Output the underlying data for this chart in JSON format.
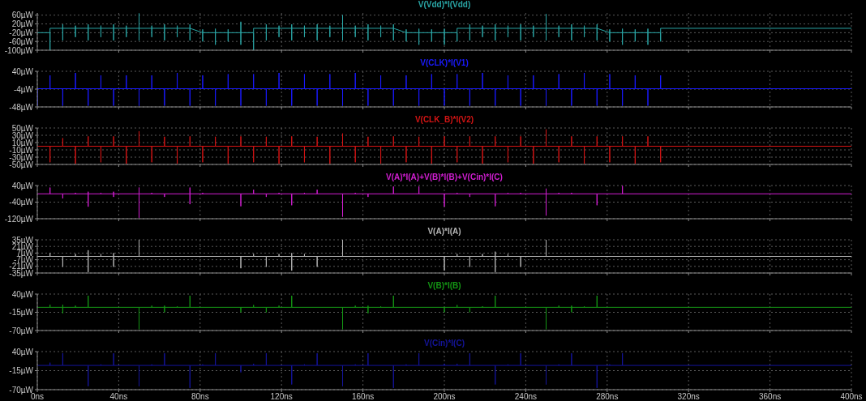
{
  "chart_data": [
    {
      "type": "line",
      "title": "V(Vdd)*I(Vdd)",
      "color": "#2aa7a7",
      "grid": true,
      "tick_labels": "y",
      "xlim": [
        0,
        400
      ],
      "xticks": [
        0,
        40,
        80,
        120,
        160,
        200,
        240,
        280,
        320,
        360,
        400
      ],
      "ylim": [
        -100,
        70
      ],
      "yticks": [
        {
          "value": 60,
          "label": "60µW"
        },
        {
          "value": 20,
          "label": "20µW"
        },
        {
          "value": -20,
          "label": "-20µW"
        },
        {
          "value": -60,
          "label": "-60µW"
        },
        {
          "value": -100,
          "label": "-100µW"
        }
      ],
      "x": [
        0,
        6.25,
        6.25,
        6.25,
        12.5,
        12.5,
        12.5,
        12.5,
        18.75,
        18.75,
        18.75,
        18.75,
        25,
        25,
        25,
        25,
        31.25,
        31.25,
        31.25,
        31.25,
        37.5,
        37.5,
        37.5,
        37.5,
        43.75,
        43.75,
        43.75,
        43.75,
        50,
        50,
        50,
        50,
        56.25,
        56.25,
        56.25,
        56.25,
        62.5,
        62.5,
        62.5,
        62.5,
        68.75,
        68.75,
        68.75,
        68.75,
        75,
        75,
        75,
        75,
        81.25,
        81.25,
        81.25,
        81.25,
        87.5,
        87.5,
        87.5,
        87.5,
        93.75,
        93.75,
        93.75,
        93.75,
        100,
        100,
        100,
        100,
        106.25,
        106.25,
        106.25,
        112.5,
        112.5,
        112.5,
        112.5,
        118.75,
        118.75,
        118.75,
        118.75,
        125,
        125,
        125,
        125,
        131.25,
        131.25,
        131.25,
        131.25,
        137.5,
        137.5,
        137.5,
        137.5,
        143.75,
        143.75,
        143.75,
        143.75,
        150,
        150,
        150,
        150,
        156.25,
        156.25,
        156.25,
        156.25,
        162.5,
        162.5,
        162.5,
        162.5,
        168.75,
        168.75,
        168.75,
        168.75,
        175,
        175,
        175,
        175,
        181.25,
        181.25,
        181.25,
        181.25,
        187.5,
        187.5,
        187.5,
        187.5,
        193.75,
        193.75,
        193.75,
        193.75,
        200,
        200,
        200,
        200,
        206.25,
        206.25,
        206.25,
        212.5,
        212.5,
        212.5,
        212.5,
        218.75,
        218.75,
        218.75,
        218.75,
        225,
        225,
        225,
        225,
        231.25,
        231.25,
        231.25,
        231.25,
        237.5,
        237.5,
        237.5,
        237.5,
        243.75,
        243.75,
        243.75,
        243.75,
        250,
        250,
        250,
        250,
        256.25,
        256.25,
        256.25,
        256.25,
        262.5,
        262.5,
        262.5,
        262.5,
        268.75,
        268.75,
        268.75,
        268.75,
        275,
        275,
        275,
        275,
        281.25,
        281.25,
        281.25,
        281.25,
        287.5,
        287.5,
        287.5,
        287.5,
        293.75,
        293.75,
        293.75,
        293.75,
        300,
        300,
        300,
        300,
        306.25,
        306.25,
        306.25,
        400
      ],
      "values": [
        -20,
        -20,
        -100,
        0,
        0,
        18,
        -55,
        0,
        0,
        12,
        -40,
        0,
        0,
        18,
        -55,
        0,
        0,
        12,
        -40,
        0,
        0,
        18,
        -55,
        0,
        0,
        12,
        -40,
        0,
        0,
        68,
        -55,
        0,
        0,
        12,
        -40,
        0,
        0,
        18,
        -55,
        0,
        0,
        12,
        -40,
        0,
        0,
        18,
        -55,
        0,
        -20,
        -5,
        -60,
        -20,
        -20,
        -2,
        -75,
        -20,
        -20,
        -5,
        -60,
        -20,
        -20,
        30,
        -75,
        -20,
        -20,
        -100,
        0,
        0,
        18,
        -55,
        0,
        0,
        12,
        -40,
        0,
        0,
        18,
        -55,
        0,
        0,
        12,
        -40,
        0,
        0,
        18,
        -55,
        0,
        0,
        12,
        -40,
        0,
        0,
        60,
        -55,
        0,
        0,
        12,
        -40,
        0,
        0,
        18,
        -55,
        0,
        0,
        12,
        -40,
        0,
        0,
        18,
        -55,
        0,
        -20,
        -5,
        -60,
        -20,
        -20,
        -2,
        -75,
        -20,
        -20,
        -5,
        -60,
        -20,
        -20,
        -2,
        -75,
        -20,
        -20,
        -60,
        0,
        0,
        18,
        -55,
        0,
        0,
        12,
        -40,
        0,
        0,
        18,
        -55,
        0,
        0,
        12,
        -40,
        0,
        0,
        18,
        -55,
        0,
        0,
        12,
        -40,
        0,
        0,
        65,
        -55,
        0,
        0,
        12,
        -40,
        0,
        0,
        18,
        -55,
        0,
        0,
        12,
        -40,
        0,
        0,
        18,
        -55,
        0,
        -20,
        -5,
        -60,
        -20,
        -20,
        -2,
        -75,
        -20,
        -20,
        -5,
        -60,
        -20,
        -20,
        -2,
        -75,
        -20,
        -20,
        -60,
        0,
        0
      ]
    },
    {
      "type": "line",
      "title": "V(CLK)*I(V1)",
      "color": "#1a1aff",
      "grid": true,
      "tick_labels": "y",
      "xlim": [
        0,
        400
      ],
      "xticks": [
        0,
        40,
        80,
        120,
        160,
        200,
        240,
        280,
        320,
        360,
        400
      ],
      "ylim": [
        -48,
        40
      ],
      "yticks": [
        {
          "value": 40,
          "label": "40µW"
        },
        {
          "value": -4,
          "label": "-4µW"
        },
        {
          "value": -48,
          "label": "-48µW"
        }
      ],
      "x": [
        0,
        0,
        0,
        6.25,
        6.25,
        6.25,
        12.5,
        12.5,
        12.5,
        18.75,
        18.75,
        18.75,
        25,
        25,
        25,
        31.25,
        31.25,
        31.25,
        37.5,
        37.5,
        37.5,
        43.75,
        43.75,
        43.75,
        50,
        50,
        50,
        56.25,
        56.25,
        56.25,
        62.5,
        62.5,
        62.5,
        68.75,
        68.75,
        68.75,
        75,
        75,
        75,
        81.25,
        81.25,
        81.25,
        87.5,
        87.5,
        87.5,
        93.75,
        93.75,
        93.75,
        100,
        100,
        100,
        106.25,
        106.25,
        106.25,
        112.5,
        112.5,
        112.5,
        118.75,
        118.75,
        118.75,
        125,
        125,
        125,
        131.25,
        131.25,
        131.25,
        137.5,
        137.5,
        137.5,
        143.75,
        143.75,
        143.75,
        150,
        150,
        150,
        156.25,
        156.25,
        156.25,
        162.5,
        162.5,
        162.5,
        168.75,
        168.75,
        168.75,
        175,
        175,
        175,
        181.25,
        181.25,
        181.25,
        187.5,
        187.5,
        187.5,
        193.75,
        193.75,
        193.75,
        200,
        200,
        200,
        206.25,
        206.25,
        206.25,
        212.5,
        212.5,
        212.5,
        218.75,
        218.75,
        218.75,
        225,
        225,
        225,
        231.25,
        231.25,
        231.25,
        237.5,
        237.5,
        237.5,
        243.75,
        243.75,
        243.75,
        250,
        250,
        250,
        256.25,
        256.25,
        256.25,
        262.5,
        262.5,
        262.5,
        268.75,
        268.75,
        268.75,
        275,
        275,
        275,
        281.25,
        281.25,
        281.25,
        287.5,
        287.5,
        287.5,
        293.75,
        293.75,
        293.75,
        300,
        300,
        300,
        306.25,
        306.25,
        306.25,
        400
      ],
      "values": [
        -3,
        -45,
        -3,
        -3,
        30,
        -3,
        -3,
        -45,
        -3,
        -3,
        36,
        -3,
        -3,
        -45,
        -3,
        -3,
        30,
        -3,
        -3,
        -45,
        -3,
        -3,
        30,
        -3,
        -3,
        -45,
        -3,
        -3,
        30,
        -3,
        -3,
        -45,
        -3,
        -3,
        36,
        -3,
        -3,
        -45,
        -3,
        -3,
        30,
        -3,
        -3,
        -45,
        -3,
        -3,
        33,
        -3,
        -3,
        -45,
        -3,
        -3,
        33,
        -3,
        -3,
        -45,
        -3,
        -3,
        36,
        -3,
        -3,
        -45,
        -3,
        -3,
        33,
        -3,
        -3,
        -45,
        -3,
        -3,
        33,
        -3,
        -3,
        -45,
        -3,
        -3,
        36,
        -3,
        -3,
        -45,
        -3,
        -3,
        30,
        -3,
        -3,
        -45,
        -3,
        -3,
        30,
        -3,
        -3,
        -45,
        -3,
        -3,
        33,
        -3,
        -3,
        -45,
        -3,
        -3,
        33,
        -3,
        -3,
        -45,
        -3,
        -3,
        36,
        -3,
        -3,
        -45,
        -3,
        -3,
        30,
        -3,
        -3,
        -45,
        -3,
        -3,
        30,
        -3,
        -3,
        -45,
        -3,
        -3,
        33,
        -3,
        -3,
        -45,
        -3,
        -3,
        36,
        -3,
        -3,
        -45,
        -3,
        -3,
        33,
        -3,
        -3,
        -45,
        -3,
        -3,
        30,
        -3,
        -3,
        -45,
        -3,
        -3,
        30,
        -3,
        -3
      ]
    },
    {
      "type": "line",
      "title": "V(CLK_B)*I(V2)",
      "color": "#d41414",
      "grid": true,
      "tick_labels": "y",
      "xlim": [
        0,
        400
      ],
      "xticks": [
        0,
        40,
        80,
        120,
        160,
        200,
        240,
        280,
        320,
        360,
        400
      ],
      "ylim": [
        -50,
        50
      ],
      "yticks": [
        {
          "value": 50,
          "label": "50µW"
        },
        {
          "value": 30,
          "label": "30µW"
        },
        {
          "value": 10,
          "label": "10µW"
        },
        {
          "value": -10,
          "label": "-10µW"
        },
        {
          "value": -30,
          "label": "-30µW"
        },
        {
          "value": -50,
          "label": "-50µW"
        }
      ],
      "x": [
        0,
        6.25,
        6.25,
        6.25,
        12.5,
        12.5,
        12.5,
        18.75,
        18.75,
        18.75,
        25,
        25,
        25,
        31.25,
        31.25,
        31.25,
        37.5,
        37.5,
        37.5,
        43.75,
        43.75,
        43.75,
        50,
        50,
        50,
        56.25,
        56.25,
        56.25,
        62.5,
        62.5,
        62.5,
        68.75,
        68.75,
        68.75,
        75,
        75,
        75,
        81.25,
        81.25,
        81.25,
        87.5,
        87.5,
        87.5,
        93.75,
        93.75,
        93.75,
        100,
        100,
        100,
        106.25,
        106.25,
        106.25,
        112.5,
        112.5,
        112.5,
        118.75,
        118.75,
        118.75,
        125,
        125,
        125,
        131.25,
        131.25,
        131.25,
        137.5,
        137.5,
        137.5,
        143.75,
        143.75,
        143.75,
        150,
        150,
        150,
        156.25,
        156.25,
        156.25,
        162.5,
        162.5,
        162.5,
        168.75,
        168.75,
        168.75,
        175,
        175,
        175,
        181.25,
        181.25,
        181.25,
        187.5,
        187.5,
        187.5,
        193.75,
        193.75,
        193.75,
        200,
        200,
        200,
        206.25,
        206.25,
        206.25,
        212.5,
        212.5,
        212.5,
        218.75,
        218.75,
        218.75,
        225,
        225,
        225,
        231.25,
        231.25,
        231.25,
        237.5,
        237.5,
        237.5,
        243.75,
        243.75,
        243.75,
        250,
        250,
        250,
        256.25,
        256.25,
        256.25,
        262.5,
        262.5,
        262.5,
        268.75,
        268.75,
        268.75,
        275,
        275,
        275,
        281.25,
        281.25,
        281.25,
        287.5,
        287.5,
        287.5,
        293.75,
        293.75,
        293.75,
        300,
        300,
        300,
        306.25,
        306.25,
        306.25,
        400
      ],
      "values": [
        0,
        0,
        -44,
        0,
        0,
        22,
        0,
        0,
        -48,
        0,
        0,
        27,
        0,
        0,
        -44,
        0,
        0,
        27,
        0,
        0,
        -48,
        0,
        0,
        41,
        0,
        0,
        -44,
        0,
        0,
        26,
        0,
        0,
        -48,
        0,
        0,
        27,
        0,
        0,
        -44,
        0,
        0,
        26,
        0,
        0,
        -48,
        0,
        0,
        27,
        0,
        0,
        -44,
        0,
        0,
        26,
        0,
        0,
        -48,
        0,
        0,
        27,
        0,
        0,
        -44,
        0,
        0,
        26,
        0,
        0,
        -48,
        0,
        0,
        35,
        0,
        0,
        -44,
        0,
        0,
        26,
        0,
        0,
        -48,
        0,
        0,
        27,
        0,
        0,
        -44,
        0,
        0,
        26,
        0,
        0,
        -48,
        0,
        0,
        27,
        0,
        0,
        -44,
        0,
        0,
        27,
        0,
        0,
        -48,
        0,
        0,
        27,
        0,
        0,
        -44,
        0,
        0,
        27,
        0,
        0,
        -48,
        0,
        0,
        46,
        0,
        0,
        -44,
        0,
        0,
        27,
        0,
        0,
        -48,
        0,
        0,
        27,
        0,
        0,
        -44,
        0,
        0,
        27,
        0,
        0,
        -48,
        0,
        0,
        27,
        0,
        0,
        -44,
        0,
        0
      ]
    },
    {
      "type": "line",
      "title": "V(A)*I(A)+V(B)*I(B)+V(Cin)*I(C)",
      "color": "#d21ed2",
      "grid": true,
      "tick_labels": "y",
      "xlim": [
        0,
        400
      ],
      "xticks": [
        0,
        40,
        80,
        120,
        160,
        200,
        240,
        280,
        320,
        360,
        400
      ],
      "ylim": [
        -120,
        40
      ],
      "yticks": [
        {
          "value": 40,
          "label": "40µW"
        },
        {
          "value": -40,
          "label": "-40µW"
        },
        {
          "value": -120,
          "label": "-120µW"
        }
      ],
      "x": [
        0,
        6.25,
        6.25,
        6.25,
        12.5,
        12.5,
        12.5,
        18.75,
        18.75,
        18.75,
        25,
        25,
        25,
        25,
        31.25,
        31.25,
        31.25,
        37.5,
        37.5,
        37.5,
        37.5,
        50,
        50,
        50,
        50,
        56.25,
        56.25,
        56.25,
        62.5,
        62.5,
        62.5,
        75,
        75,
        75,
        75,
        81.25,
        81.25,
        81.25,
        100,
        100,
        100,
        106.25,
        106.25,
        106.25,
        112.5,
        112.5,
        112.5,
        118.75,
        118.75,
        118.75,
        125,
        125,
        125,
        131.25,
        131.25,
        131.25,
        137.5,
        137.5,
        137.5,
        150,
        150,
        150,
        156.25,
        156.25,
        156.25,
        162.5,
        162.5,
        162.5,
        175,
        175,
        175,
        187.5,
        187.5,
        187.5,
        200,
        200,
        200,
        206.25,
        206.25,
        206.25,
        212.5,
        212.5,
        212.5,
        225,
        225,
        225,
        231.25,
        231.25,
        231.25,
        237.5,
        237.5,
        237.5,
        250,
        250,
        250,
        250,
        256.25,
        256.25,
        256.25,
        262.5,
        262.5,
        262.5,
        275,
        275,
        275,
        287.5,
        287.5,
        287.5,
        400
      ],
      "values": [
        0,
        0,
        30,
        0,
        0,
        -22,
        0,
        0,
        5,
        0,
        0,
        10,
        -62,
        0,
        0,
        5,
        0,
        0,
        10,
        -15,
        0,
        0,
        30,
        -115,
        0,
        0,
        5,
        0,
        0,
        -15,
        0,
        0,
        30,
        -50,
        0,
        0,
        5,
        0,
        0,
        -60,
        0,
        0,
        20,
        0,
        0,
        -15,
        0,
        0,
        5,
        0,
        0,
        -55,
        0,
        0,
        5,
        0,
        0,
        20,
        0,
        0,
        -110,
        0,
        0,
        5,
        0,
        0,
        -15,
        0,
        0,
        35,
        0,
        0,
        35,
        0,
        0,
        -62,
        0,
        0,
        5,
        0,
        0,
        -15,
        0,
        0,
        -60,
        0,
        0,
        5,
        0,
        0,
        5,
        0,
        0,
        25,
        -105,
        0,
        0,
        5,
        0,
        0,
        5,
        0,
        0,
        -55,
        0,
        0,
        38,
        0,
        0
      ]
    },
    {
      "type": "line",
      "title": "V(A)*I(A)",
      "color": "#b4b4b4",
      "grid": true,
      "tick_labels": "y",
      "xlim": [
        0,
        400
      ],
      "xticks": [
        0,
        40,
        80,
        120,
        160,
        200,
        240,
        280,
        320,
        360,
        400
      ],
      "ylim": [
        -35,
        35
      ],
      "yticks": [
        {
          "value": 35,
          "label": "35µW"
        },
        {
          "value": 21,
          "label": "21µW"
        },
        {
          "value": 7,
          "label": "7µW"
        },
        {
          "value": -7,
          "label": "-7µW"
        },
        {
          "value": -21,
          "label": "-21µW"
        },
        {
          "value": -35,
          "label": "-35µW"
        }
      ],
      "x": [
        0,
        6.25,
        6.25,
        6.25,
        12.5,
        12.5,
        12.5,
        18.75,
        18.75,
        18.75,
        25,
        25,
        25,
        25,
        31.25,
        31.25,
        31.25,
        37.5,
        37.5,
        37.5,
        37.5,
        50,
        50,
        50,
        100,
        100,
        100,
        106.25,
        106.25,
        106.25,
        112.5,
        112.5,
        112.5,
        118.75,
        118.75,
        118.75,
        125,
        125,
        125,
        125,
        131.25,
        131.25,
        131.25,
        137.5,
        137.5,
        137.5,
        150,
        150,
        150,
        200,
        200,
        200,
        206.25,
        206.25,
        206.25,
        212.5,
        212.5,
        212.5,
        218.75,
        218.75,
        218.75,
        225,
        225,
        225,
        225,
        231.25,
        231.25,
        231.25,
        237.5,
        237.5,
        237.5,
        250,
        250,
        250,
        400
      ],
      "values": [
        0,
        0,
        7,
        0,
        0,
        -22,
        0,
        0,
        5,
        0,
        0,
        13,
        -33,
        0,
        0,
        5,
        0,
        0,
        7,
        -22,
        0,
        0,
        35,
        0,
        0,
        -25,
        0,
        0,
        5,
        0,
        0,
        -22,
        0,
        0,
        5,
        0,
        0,
        7,
        -30,
        0,
        0,
        5,
        0,
        0,
        -22,
        0,
        0,
        35,
        0,
        0,
        -30,
        0,
        0,
        5,
        0,
        0,
        -22,
        0,
        0,
        5,
        0,
        0,
        10,
        -33,
        0,
        0,
        5,
        0,
        0,
        -22,
        0,
        0,
        35,
        0,
        0
      ]
    },
    {
      "type": "line",
      "title": "V(B)*I(B)",
      "color": "#149614",
      "grid": true,
      "tick_labels": "y",
      "xlim": [
        0,
        400
      ],
      "xticks": [
        0,
        40,
        80,
        120,
        160,
        200,
        240,
        280,
        320,
        360,
        400
      ],
      "ylim": [
        -70,
        40
      ],
      "yticks": [
        {
          "value": 40,
          "label": "40µW"
        },
        {
          "value": -15,
          "label": "-15µW"
        },
        {
          "value": -70,
          "label": "-70µW"
        }
      ],
      "x": [
        0,
        6.25,
        6.25,
        6.25,
        12.5,
        12.5,
        12.5,
        12.5,
        18.75,
        18.75,
        18.75,
        25,
        25,
        25,
        50,
        50,
        50,
        56.25,
        56.25,
        56.25,
        62.5,
        62.5,
        62.5,
        62.5,
        68.75,
        68.75,
        68.75,
        75,
        75,
        75,
        100,
        100,
        100,
        106.25,
        106.25,
        106.25,
        112.5,
        112.5,
        112.5,
        118.75,
        118.75,
        118.75,
        125,
        125,
        125,
        150,
        150,
        150,
        156.25,
        156.25,
        156.25,
        162.5,
        162.5,
        162.5,
        162.5,
        168.75,
        168.75,
        168.75,
        175,
        175,
        175,
        200,
        200,
        200,
        206.25,
        206.25,
        206.25,
        212.5,
        212.5,
        212.5,
        218.75,
        218.75,
        218.75,
        225,
        225,
        225,
        250,
        250,
        250,
        256.25,
        256.25,
        256.25,
        262.5,
        262.5,
        262.5,
        262.5,
        268.75,
        268.75,
        268.75,
        275,
        275,
        275,
        400
      ],
      "values": [
        0,
        0,
        8,
        0,
        0,
        8,
        -18,
        0,
        0,
        5,
        0,
        0,
        35,
        0,
        0,
        -66,
        0,
        0,
        5,
        0,
        0,
        5,
        -15,
        0,
        0,
        3,
        0,
        0,
        35,
        0,
        0,
        -15,
        0,
        0,
        7,
        0,
        0,
        -15,
        0,
        0,
        5,
        0,
        0,
        35,
        0,
        0,
        -66,
        0,
        0,
        5,
        0,
        0,
        5,
        -18,
        0,
        0,
        3,
        0,
        0,
        35,
        0,
        0,
        -15,
        0,
        0,
        7,
        0,
        0,
        -15,
        0,
        0,
        3,
        0,
        0,
        35,
        0,
        0,
        -66,
        0,
        0,
        5,
        0,
        0,
        5,
        -15,
        0,
        0,
        3,
        0,
        0,
        35,
        0,
        0
      ]
    },
    {
      "type": "line",
      "title": "V(Cin)*I(C)",
      "color": "#14149b",
      "grid": true,
      "xlim": [
        0,
        400
      ],
      "xticks": [
        {
          "value": 0,
          "label": "0ns"
        },
        {
          "value": 40,
          "label": "40ns"
        },
        {
          "value": 80,
          "label": "80ns"
        },
        {
          "value": 120,
          "label": "120ns"
        },
        {
          "value": 160,
          "label": "160ns"
        },
        {
          "value": 200,
          "label": "200ns"
        },
        {
          "value": 240,
          "label": "240ns"
        },
        {
          "value": 280,
          "label": "280ns"
        },
        {
          "value": 320,
          "label": "320ns"
        },
        {
          "value": 360,
          "label": "360ns"
        },
        {
          "value": 400,
          "label": "400ns"
        }
      ],
      "ylim": [
        -70,
        40
      ],
      "yticks": [
        {
          "value": 40,
          "label": "40µW"
        },
        {
          "value": -15,
          "label": "-15µW"
        },
        {
          "value": -70,
          "label": "-70µW"
        }
      ],
      "x": [
        0,
        6.25,
        6.25,
        6.25,
        12.5,
        12.5,
        12.5,
        25,
        25,
        25,
        31.25,
        31.25,
        31.25,
        37.5,
        37.5,
        37.5,
        50,
        50,
        50,
        56.25,
        56.25,
        56.25,
        62.5,
        62.5,
        62.5,
        75,
        75,
        75,
        81.25,
        81.25,
        81.25,
        87.5,
        87.5,
        87.5,
        100,
        100,
        100,
        106.25,
        106.25,
        106.25,
        112.5,
        112.5,
        112.5,
        125,
        125,
        125,
        131.25,
        131.25,
        131.25,
        137.5,
        137.5,
        137.5,
        150,
        150,
        150,
        156.25,
        156.25,
        156.25,
        162.5,
        162.5,
        162.5,
        175,
        175,
        175,
        181.25,
        181.25,
        181.25,
        187.5,
        187.5,
        187.5,
        200,
        200,
        200,
        206.25,
        206.25,
        206.25,
        212.5,
        212.5,
        212.5,
        225,
        225,
        225,
        231.25,
        231.25,
        231.25,
        237.5,
        237.5,
        237.5,
        250,
        250,
        250,
        256.25,
        256.25,
        256.25,
        262.5,
        262.5,
        262.5,
        275,
        275,
        275,
        281.25,
        281.25,
        281.25,
        287.5,
        287.5,
        287.5,
        400
      ],
      "values": [
        0,
        0,
        8,
        0,
        0,
        35,
        0,
        0,
        -60,
        0,
        0,
        3,
        0,
        0,
        35,
        0,
        0,
        -60,
        0,
        0,
        3,
        0,
        0,
        35,
        0,
        0,
        -65,
        0,
        0,
        3,
        0,
        0,
        35,
        0,
        0,
        -20,
        0,
        0,
        5,
        0,
        0,
        35,
        0,
        0,
        -55,
        0,
        0,
        3,
        0,
        0,
        35,
        0,
        0,
        -60,
        0,
        0,
        3,
        0,
        0,
        35,
        0,
        0,
        -65,
        0,
        0,
        3,
        0,
        0,
        35,
        0,
        0,
        5,
        0,
        0,
        5,
        0,
        0,
        35,
        0,
        0,
        -55,
        0,
        0,
        3,
        0,
        0,
        35,
        0,
        0,
        -55,
        0,
        0,
        3,
        0,
        0,
        35,
        0,
        0,
        -65,
        0,
        0,
        3,
        0,
        0,
        35,
        0,
        0
      ]
    }
  ]
}
